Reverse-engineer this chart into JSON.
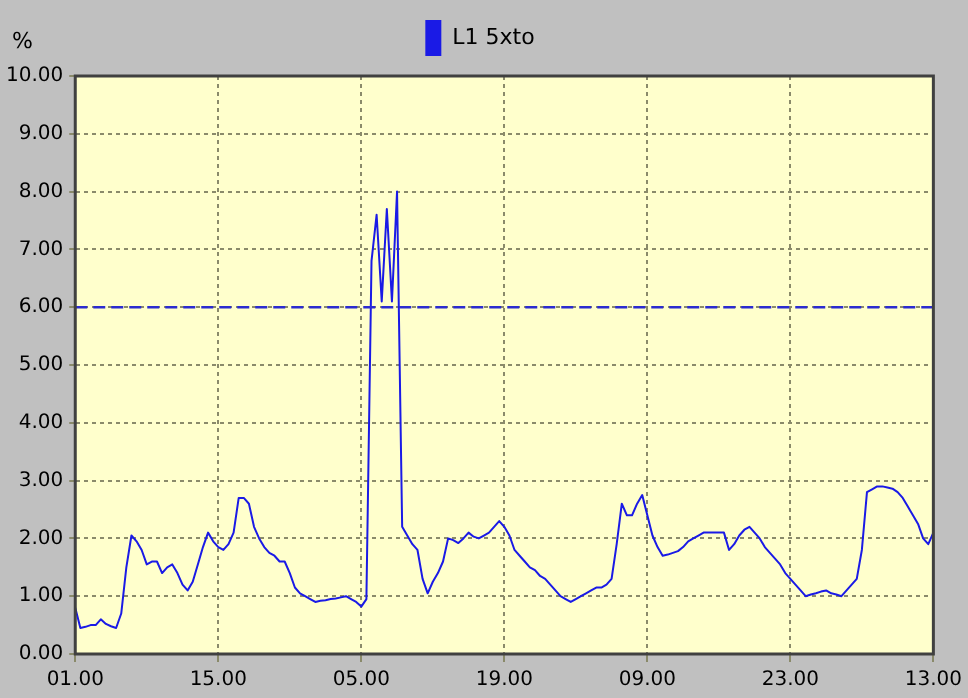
{
  "chart_data": {
    "type": "line",
    "ylabel": "%",
    "ylim": [
      0,
      10
    ],
    "categories": [
      "01.00",
      null,
      null,
      null,
      null,
      null,
      null,
      null,
      null,
      null,
      null,
      null,
      null,
      null,
      null,
      null,
      null,
      null,
      null,
      null,
      null,
      null,
      null,
      null,
      null,
      null,
      null,
      null,
      "15.00",
      null,
      null,
      null,
      null,
      null,
      null,
      null,
      null,
      null,
      null,
      null,
      null,
      null,
      null,
      null,
      null,
      null,
      null,
      null,
      null,
      null,
      null,
      null,
      null,
      null,
      null,
      null,
      "05.00",
      null,
      null,
      null,
      null,
      null,
      null,
      null,
      null,
      null,
      null,
      null,
      null,
      null,
      null,
      null,
      null,
      null,
      null,
      null,
      null,
      null,
      null,
      null,
      null,
      null,
      null,
      null,
      "19.00",
      null,
      null,
      null,
      null,
      null,
      null,
      null,
      null,
      null,
      null,
      null,
      null,
      null,
      null,
      null,
      null,
      null,
      null,
      null,
      null,
      null,
      null,
      null,
      null,
      null,
      null,
      null,
      "09.00",
      null,
      null,
      null,
      null,
      null,
      null,
      null,
      null,
      null,
      null,
      null,
      null,
      null,
      null,
      null,
      null,
      null,
      null,
      null,
      null,
      null,
      null,
      null,
      null,
      null,
      null,
      null,
      "23.00",
      null,
      null,
      null,
      null,
      null,
      null,
      null,
      null,
      null,
      null,
      null,
      null,
      null,
      null,
      null,
      null,
      null,
      null,
      null,
      null,
      null,
      null,
      null,
      null,
      null,
      null,
      null,
      "13.00"
    ],
    "yticks": [
      {
        "value": 0,
        "label": "0.00"
      },
      {
        "value": 1,
        "label": "1.00"
      },
      {
        "value": 2,
        "label": "2.00"
      },
      {
        "value": 3,
        "label": "3.00"
      },
      {
        "value": 4,
        "label": "4.00"
      },
      {
        "value": 5,
        "label": "5.00"
      },
      {
        "value": 6,
        "label": "6.00"
      },
      {
        "value": 7,
        "label": "7.00"
      },
      {
        "value": 8,
        "label": "8.00"
      },
      {
        "value": 9,
        "label": "9.00"
      },
      {
        "value": 10,
        "label": "10.00"
      }
    ],
    "grid": true,
    "legend": "top",
    "marker": "none",
    "line_style": "solid",
    "ref_lines": [
      {
        "axis": "y",
        "value": 6,
        "color": "#2b2bd0",
        "line_style": "dashed"
      }
    ],
    "series": [
      {
        "name": "L1 5xto",
        "color": "#1a1ae6",
        "values": [
          0.8,
          0.45,
          0.47,
          0.5,
          0.5,
          0.6,
          0.52,
          0.48,
          0.45,
          0.7,
          1.5,
          2.05,
          1.95,
          1.8,
          1.55,
          1.6,
          1.6,
          1.4,
          1.5,
          1.55,
          1.4,
          1.2,
          1.1,
          1.25,
          1.55,
          1.85,
          2.1,
          1.95,
          1.85,
          1.8,
          1.9,
          2.1,
          2.7,
          2.7,
          2.6,
          2.2,
          2.0,
          1.85,
          1.75,
          1.7,
          1.6,
          1.6,
          1.4,
          1.15,
          1.05,
          1.0,
          0.95,
          0.9,
          0.92,
          0.93,
          0.95,
          0.96,
          0.98,
          1.0,
          0.95,
          0.9,
          0.82,
          0.95,
          6.8,
          7.6,
          6.1,
          7.7,
          6.1,
          8.0,
          2.2,
          2.05,
          1.9,
          1.8,
          1.3,
          1.05,
          1.25,
          1.4,
          1.6,
          2.0,
          1.97,
          1.92,
          2.0,
          2.1,
          2.03,
          2.0,
          2.05,
          2.1,
          2.2,
          2.3,
          2.2,
          2.05,
          1.8,
          1.7,
          1.6,
          1.5,
          1.45,
          1.35,
          1.3,
          1.2,
          1.1,
          1.0,
          0.95,
          0.9,
          0.95,
          1.0,
          1.05,
          1.1,
          1.15,
          1.15,
          1.2,
          1.3,
          1.9,
          2.6,
          2.4,
          2.4,
          2.6,
          2.75,
          2.4,
          2.05,
          1.85,
          1.7,
          1.72,
          1.75,
          1.78,
          1.85,
          1.95,
          2.0,
          2.05,
          2.1,
          2.1,
          2.1,
          2.1,
          2.1,
          1.8,
          1.9,
          2.05,
          2.15,
          2.2,
          2.1,
          2.0,
          1.85,
          1.75,
          1.65,
          1.55,
          1.4,
          1.3,
          1.2,
          1.1,
          1.0,
          1.03,
          1.05,
          1.08,
          1.1,
          1.05,
          1.03,
          1.0,
          1.1,
          1.2,
          1.3,
          1.8,
          2.8,
          2.85,
          2.9,
          2.9,
          2.88,
          2.86,
          2.8,
          2.7,
          2.55,
          2.4,
          2.25,
          2.0,
          1.9,
          2.1
        ]
      }
    ]
  }
}
